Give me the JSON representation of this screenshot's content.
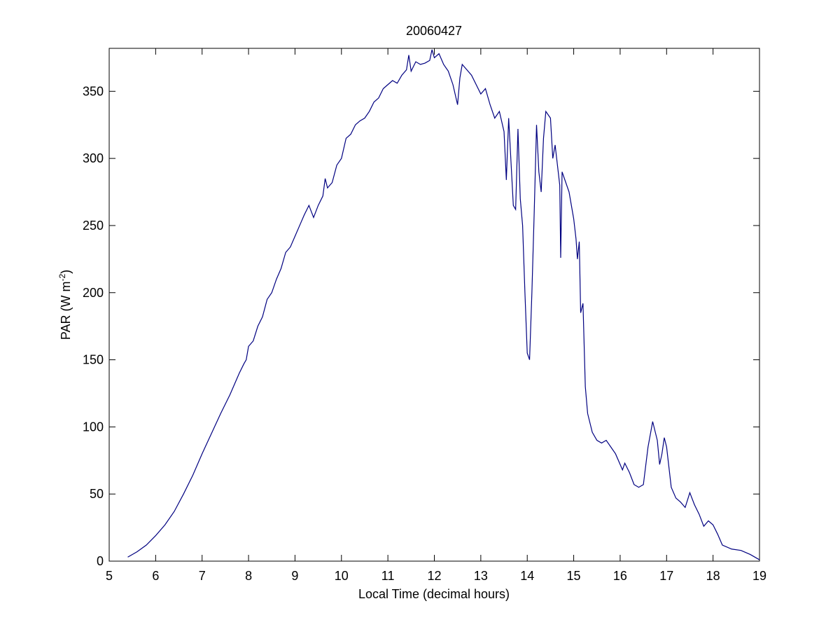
{
  "chart_data": {
    "type": "line",
    "title": "20060427",
    "xlabel": "Local Time (decimal hours)",
    "ylabel": [
      "PAR (W m",
      "-2",
      ")"
    ],
    "xlim": [
      5,
      19
    ],
    "xticks": [
      5,
      6,
      7,
      8,
      9,
      10,
      11,
      12,
      13,
      14,
      15,
      16,
      17,
      18,
      19
    ],
    "ylim": [
      0,
      382
    ],
    "yticks": [
      0,
      50,
      100,
      150,
      200,
      250,
      300,
      350
    ],
    "series": [
      {
        "name": "PAR",
        "color": "#000080",
        "x": [
          5.4,
          5.6,
          5.8,
          6.0,
          6.2,
          6.4,
          6.6,
          6.8,
          7.0,
          7.2,
          7.4,
          7.6,
          7.8,
          7.9,
          7.95,
          8.0,
          8.1,
          8.2,
          8.3,
          8.4,
          8.5,
          8.6,
          8.7,
          8.8,
          8.9,
          9.0,
          9.1,
          9.2,
          9.3,
          9.4,
          9.5,
          9.6,
          9.65,
          9.7,
          9.8,
          9.9,
          10.0,
          10.1,
          10.2,
          10.3,
          10.4,
          10.5,
          10.6,
          10.7,
          10.8,
          10.9,
          11.0,
          11.1,
          11.2,
          11.3,
          11.4,
          11.45,
          11.5,
          11.6,
          11.7,
          11.8,
          11.9,
          11.95,
          12.0,
          12.1,
          12.2,
          12.3,
          12.4,
          12.5,
          12.55,
          12.6,
          12.7,
          12.8,
          12.9,
          13.0,
          13.1,
          13.2,
          13.3,
          13.4,
          13.5,
          13.55,
          13.6,
          13.7,
          13.75,
          13.8,
          13.85,
          13.9,
          13.95,
          14.0,
          14.05,
          14.1,
          14.15,
          14.2,
          14.25,
          14.3,
          14.35,
          14.4,
          14.5,
          14.55,
          14.6,
          14.7,
          14.72,
          14.75,
          14.8,
          14.9,
          15.0,
          15.05,
          15.08,
          15.12,
          15.15,
          15.2,
          15.25,
          15.3,
          15.4,
          15.5,
          15.6,
          15.7,
          15.8,
          15.9,
          16.0,
          16.05,
          16.1,
          16.2,
          16.3,
          16.4,
          16.5,
          16.6,
          16.7,
          16.8,
          16.85,
          16.9,
          16.95,
          17.0,
          17.1,
          17.2,
          17.3,
          17.4,
          17.5,
          17.6,
          17.7,
          17.8,
          17.9,
          18.0,
          18.1,
          18.2,
          18.4,
          18.6,
          18.8,
          19.0
        ],
        "values": [
          3,
          7,
          12,
          19,
          27,
          37,
          50,
          64,
          80,
          95,
          110,
          124,
          140,
          147,
          150,
          160,
          164,
          175,
          182,
          195,
          200,
          210,
          218,
          230,
          234,
          242,
          250,
          258,
          265,
          256,
          265,
          272,
          285,
          278,
          282,
          295,
          300,
          315,
          318,
          325,
          328,
          330,
          335,
          342,
          345,
          352,
          355,
          358,
          356,
          362,
          366,
          377,
          365,
          372,
          370,
          371,
          373,
          381,
          375,
          378,
          370,
          365,
          355,
          340,
          360,
          370,
          366,
          362,
          355,
          348,
          352,
          340,
          330,
          335,
          320,
          284,
          330,
          265,
          262,
          322,
          270,
          250,
          200,
          155,
          150,
          200,
          260,
          325,
          290,
          275,
          315,
          335,
          330,
          300,
          310,
          280,
          226,
          290,
          285,
          275,
          255,
          240,
          225,
          238,
          185,
          192,
          130,
          110,
          96,
          90,
          88,
          90,
          85,
          80,
          72,
          68,
          73,
          66,
          57,
          55,
          57,
          85,
          104,
          90,
          72,
          80,
          92,
          85,
          55,
          47,
          44,
          40,
          51,
          42,
          35,
          26,
          30,
          27,
          20,
          12,
          9,
          8,
          5,
          1
        ]
      }
    ]
  }
}
